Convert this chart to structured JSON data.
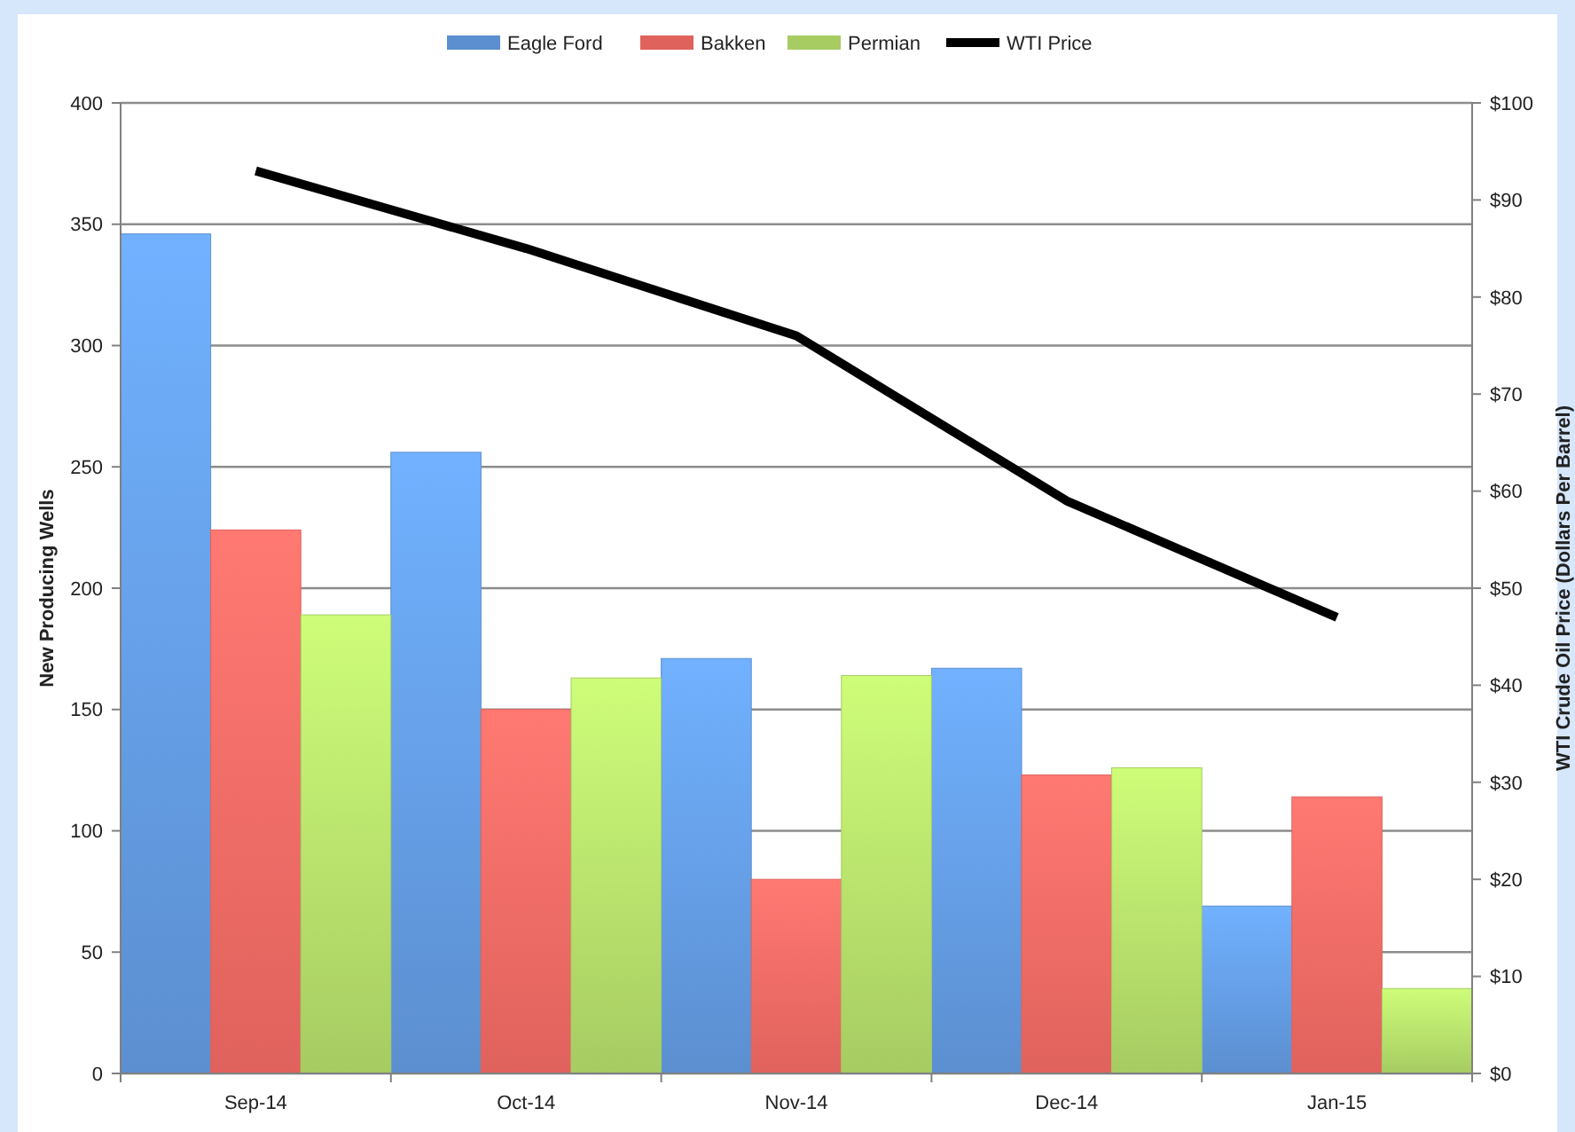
{
  "chart_data": {
    "type": "bar",
    "categories": [
      "Sep-14",
      "Oct-14",
      "Nov-14",
      "Dec-14",
      "Jan-15"
    ],
    "ylabel": "New Producing Wells",
    "y2label": "WTI Crude Oil Price (Dollars Per Barrel)",
    "ylim": [
      0,
      400
    ],
    "yticks": [
      0,
      50,
      100,
      150,
      200,
      250,
      300,
      350,
      400
    ],
    "y2lim": [
      0,
      100
    ],
    "y2ticks": [
      {
        "value": 0,
        "label": "$0"
      },
      {
        "value": 10,
        "label": "$10"
      },
      {
        "value": 20,
        "label": "$20"
      },
      {
        "value": 30,
        "label": "$30"
      },
      {
        "value": 40,
        "label": "$40"
      },
      {
        "value": 50,
        "label": "$50"
      },
      {
        "value": 60,
        "label": "$60"
      },
      {
        "value": 70,
        "label": "$70"
      },
      {
        "value": 80,
        "label": "$80"
      },
      {
        "value": 90,
        "label": "$90"
      },
      {
        "value": 100,
        "label": "$100"
      }
    ],
    "grid": "y",
    "legend": "top",
    "series": [
      {
        "name": "Eagle Ford",
        "color": "#5b8fd0",
        "values": [
          346,
          256,
          171,
          167,
          69
        ]
      },
      {
        "name": "Bakken",
        "color": "#e0625c",
        "values": [
          224,
          150,
          80,
          123,
          114
        ]
      },
      {
        "name": "Permian",
        "color": "#a6cc62",
        "values": [
          189,
          163,
          164,
          126,
          35
        ]
      },
      {
        "name": "WTI Price",
        "type": "line",
        "axis": "y2",
        "color": "#000000",
        "values": [
          93,
          85,
          76,
          59,
          47
        ]
      }
    ]
  }
}
